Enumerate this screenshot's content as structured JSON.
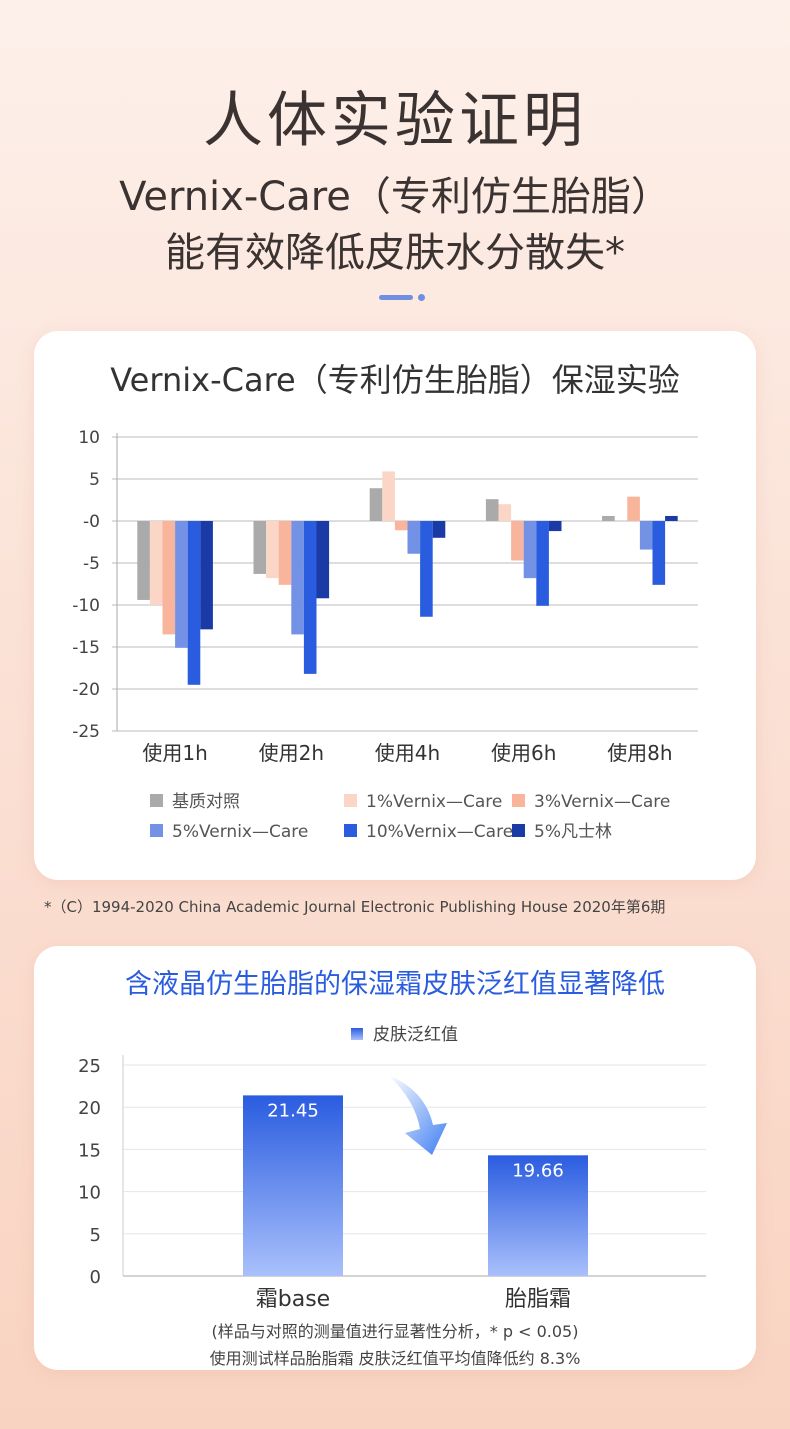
{
  "header": {
    "title": "人体实验证明",
    "subtitle_line1": "Vernix-Care（专利仿生胎脂）",
    "subtitle_line2": "能有效降低皮肤水分散失*"
  },
  "chart_data": [
    {
      "type": "bar",
      "title": "Vernix-Care（专利仿生胎脂）保湿实验",
      "categories": [
        "使用1h",
        "使用2h",
        "使用4h",
        "使用6h",
        "使用8h"
      ],
      "ylim": [
        -25,
        10
      ],
      "yticks": [
        "10",
        "5",
        "-0",
        "-5",
        "-10",
        "-15",
        "-20",
        "-25"
      ],
      "ytick_values": [
        10,
        5,
        0,
        -5,
        -10,
        -15,
        -20,
        -25
      ],
      "grid": true,
      "legend_position": "bottom",
      "series": [
        {
          "name": "基质对照",
          "color": "#aaaaaa",
          "values": [
            -9.4,
            -6.3,
            3.9,
            2.6,
            0.6
          ]
        },
        {
          "name": "1%Vernix—Care",
          "color": "#fbd5c5",
          "values": [
            -10.0,
            -6.8,
            5.9,
            2.0,
            0
          ]
        },
        {
          "name": "3%Vernix—Care",
          "color": "#f9b59c",
          "values": [
            -13.5,
            -7.6,
            -1.1,
            -4.7,
            2.9
          ]
        },
        {
          "name": "5%Vernix—Care",
          "color": "#7392e6",
          "values": [
            -15.1,
            -13.5,
            -3.9,
            -6.8,
            -3.4
          ]
        },
        {
          "name": "10%Vernix—Care",
          "color": "#2a5ce0",
          "values": [
            -19.5,
            -18.2,
            -11.4,
            -10.1,
            -7.6
          ]
        },
        {
          "name": "5%凡士林",
          "color": "#1a3aa6",
          "values": [
            -12.9,
            -9.2,
            -2.0,
            -1.2,
            0.6
          ]
        }
      ]
    },
    {
      "type": "bar",
      "title": "含液晶仿生胎脂的保湿霜皮肤泛红值显著降低",
      "legend": "皮肤泛红值",
      "legend_position": "top-center",
      "categories": [
        "霜base",
        "胎脂霜"
      ],
      "values": [
        21.45,
        19.66
      ],
      "drawn_bar_heights": [
        21.4,
        14.3
      ],
      "ylim": [
        0,
        25
      ],
      "yticks": [
        "0",
        "5",
        "10",
        "15",
        "20",
        "25"
      ],
      "ytick_values": [
        0,
        5,
        10,
        15,
        20,
        25
      ],
      "grid": true,
      "colors": {
        "top": "#2a5ce0",
        "bottom": "#a9c0fb"
      }
    }
  ],
  "footnote": "*（C）1994-2020 China Academic Journal Electronic Publishing House 2020年第6期",
  "notes": {
    "line1": "(样品与对照的测量值进行显著性分析，* p < 0.05)",
    "line2": "使用测试样品胎脂霜 皮肤泛红值平均值降低约 8.3%"
  }
}
